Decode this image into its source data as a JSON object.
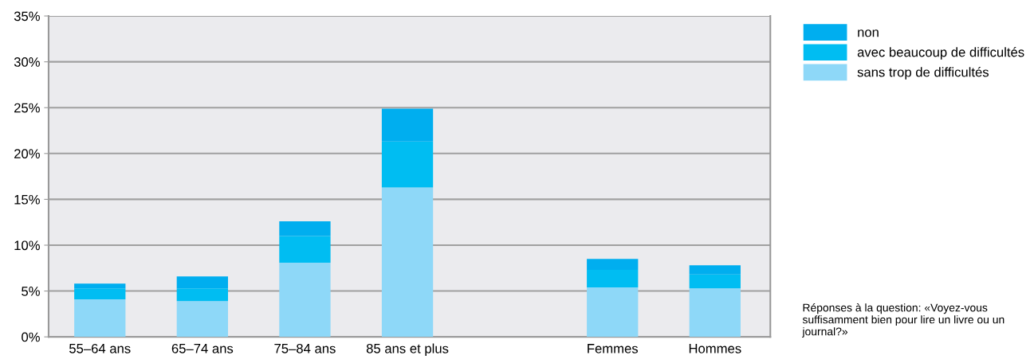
{
  "chart_data": {
    "type": "bar",
    "stacked": true,
    "categories": [
      "55–64 ans",
      "65–74 ans",
      "75–84 ans",
      "85 ans et plus",
      null,
      "Femmes",
      "Hommes"
    ],
    "series": [
      {
        "name": "sans trop de difficultés",
        "color": "#8ed8f8",
        "values": [
          4.1,
          3.9,
          8.1,
          16.3,
          null,
          5.4,
          5.3
        ]
      },
      {
        "name": "avec beaucoup de difficultés",
        "color": "#00bdf2",
        "values": [
          1.2,
          1.4,
          2.9,
          5.0,
          null,
          1.9,
          1.5
        ]
      },
      {
        "name": "non",
        "color": "#00aeef",
        "values": [
          0.5,
          1.3,
          1.6,
          3.6,
          null,
          1.2,
          1.0
        ]
      }
    ],
    "ylim": [
      0,
      35
    ],
    "yticks": [
      {
        "value": 0,
        "label": "0%"
      },
      {
        "value": 5,
        "label": "5%"
      },
      {
        "value": 10,
        "label": "10%"
      },
      {
        "value": 15,
        "label": "15%"
      },
      {
        "value": 20,
        "label": "20%"
      },
      {
        "value": 25,
        "label": "25%"
      },
      {
        "value": 30,
        "label": "30%"
      },
      {
        "value": 35,
        "label": "35%"
      }
    ],
    "grid": "y",
    "legend": "top right",
    "annotations": [
      "Réponses à la question: «Voyez-vous suffisamment bien pour lire un livre ou un journal?»"
    ]
  }
}
